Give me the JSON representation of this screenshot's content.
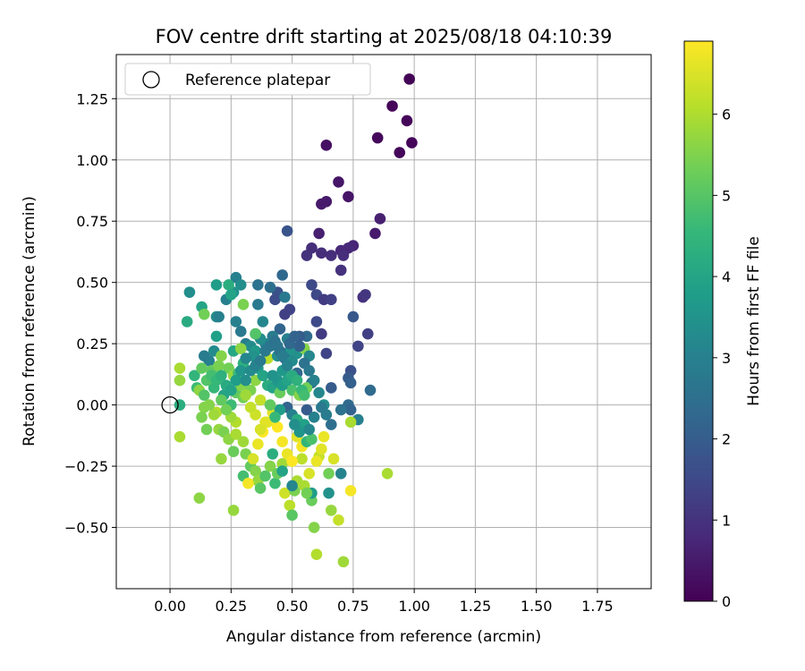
{
  "chart_data": {
    "type": "scatter",
    "title": "FOV centre drift starting at 2025/08/18 04:10:39",
    "xlabel": "Angular distance from reference (arcmin)",
    "ylabel": "Rotation from reference (arcmin)",
    "xlim": [
      -0.22,
      1.97
    ],
    "ylim": [
      -0.75,
      1.43
    ],
    "x_ticks": [
      "0.00",
      "0.25",
      "0.50",
      "0.75",
      "1.00",
      "1.25",
      "1.50",
      "1.75"
    ],
    "x_tick_values": [
      0,
      0.25,
      0.5,
      0.75,
      1.0,
      1.25,
      1.5,
      1.75
    ],
    "y_ticks": [
      "−0.50",
      "−0.25",
      "0.00",
      "0.25",
      "0.50",
      "0.75",
      "1.00",
      "1.25"
    ],
    "y_tick_values": [
      -0.5,
      -0.25,
      0,
      0.25,
      0.5,
      0.75,
      1.0,
      1.25
    ],
    "grid": true,
    "legend": {
      "position": "top-left",
      "entries": [
        "Reference platepar"
      ]
    },
    "reference_point": {
      "x": 0.0,
      "y": 0.0
    },
    "colorbar": {
      "label": "Hours from first FF file",
      "range": [
        0,
        6.9
      ],
      "ticks": [
        "0",
        "1",
        "2",
        "3",
        "4",
        "5",
        "6"
      ],
      "tick_values": [
        0,
        1,
        2,
        3,
        4,
        5,
        6
      ],
      "colormap": "viridis"
    },
    "points": [
      [
        0.98,
        1.33,
        0.05
      ],
      [
        0.91,
        1.22,
        0.1
      ],
      [
        0.97,
        1.16,
        0.1
      ],
      [
        0.85,
        1.09,
        0.15
      ],
      [
        0.99,
        1.07,
        0.1
      ],
      [
        0.94,
        1.03,
        0.12
      ],
      [
        0.64,
        1.06,
        0.3
      ],
      [
        0.69,
        0.91,
        0.4
      ],
      [
        0.73,
        0.85,
        0.4
      ],
      [
        0.62,
        0.82,
        0.5
      ],
      [
        0.64,
        0.83,
        0.5
      ],
      [
        0.86,
        0.76,
        0.6
      ],
      [
        0.84,
        0.7,
        0.5
      ],
      [
        0.61,
        0.7,
        0.6
      ],
      [
        0.48,
        0.71,
        1.8
      ],
      [
        0.75,
        0.65,
        0.7
      ],
      [
        0.73,
        0.64,
        0.8
      ],
      [
        0.7,
        0.63,
        0.8
      ],
      [
        0.58,
        0.64,
        0.9
      ],
      [
        0.62,
        0.62,
        0.9
      ],
      [
        0.66,
        0.61,
        0.9
      ],
      [
        0.71,
        0.61,
        0.9
      ],
      [
        0.56,
        0.61,
        1.0
      ],
      [
        0.7,
        0.55,
        1.0
      ],
      [
        0.46,
        0.53,
        2.3
      ],
      [
        0.58,
        0.49,
        1.5
      ],
      [
        0.44,
        0.46,
        1.7
      ],
      [
        0.43,
        0.43,
        1.6
      ],
      [
        0.6,
        0.45,
        1.5
      ],
      [
        0.63,
        0.43,
        1.2
      ],
      [
        0.66,
        0.43,
        1.3
      ],
      [
        0.79,
        0.44,
        1.0
      ],
      [
        0.8,
        0.45,
        1.1
      ],
      [
        0.49,
        0.39,
        1.4
      ],
      [
        0.47,
        0.37,
        1.3
      ],
      [
        0.6,
        0.34,
        1.5
      ],
      [
        0.75,
        0.36,
        1.9
      ],
      [
        0.81,
        0.29,
        1.3
      ],
      [
        0.77,
        0.24,
        1.4
      ],
      [
        0.64,
        0.21,
        1.4
      ],
      [
        0.62,
        0.29,
        1.2
      ],
      [
        0.74,
        0.14,
        1.7
      ],
      [
        0.66,
        0.07,
        2.0
      ],
      [
        0.82,
        0.06,
        2.4
      ],
      [
        0.73,
        0.11,
        2.0
      ],
      [
        0.74,
        0.09,
        2.1
      ],
      [
        0.73,
        0.0,
        2.4
      ],
      [
        0.74,
        -0.02,
        2.2
      ],
      [
        0.7,
        -0.02,
        2.6
      ],
      [
        0.77,
        -0.06,
        3.0
      ],
      [
        0.74,
        -0.07,
        6.0
      ],
      [
        0.56,
        -0.02,
        2.0
      ],
      [
        0.58,
        0.09,
        2.5
      ],
      [
        0.52,
        0.13,
        2.3
      ],
      [
        0.27,
        0.52,
        3.0
      ],
      [
        0.29,
        0.49,
        3.4
      ],
      [
        0.26,
        0.46,
        3.5
      ],
      [
        0.36,
        0.49,
        2.6
      ],
      [
        0.41,
        0.48,
        2.5
      ],
      [
        0.47,
        0.44,
        2.8
      ],
      [
        0.19,
        0.49,
        3.8
      ],
      [
        0.08,
        0.46,
        3.4
      ],
      [
        0.13,
        0.4,
        4.0
      ],
      [
        0.14,
        0.37,
        5.4
      ],
      [
        0.19,
        0.36,
        3.4
      ],
      [
        0.2,
        0.36,
        3.0
      ],
      [
        0.07,
        0.34,
        4.2
      ],
      [
        0.23,
        0.43,
        3.0
      ],
      [
        0.24,
        0.49,
        4.3
      ],
      [
        0.25,
        0.45,
        4.0
      ],
      [
        0.3,
        0.41,
        5.5
      ],
      [
        0.36,
        0.41,
        2.8
      ],
      [
        0.38,
        0.34,
        3.2
      ],
      [
        0.27,
        0.34,
        3.0
      ],
      [
        0.29,
        0.3,
        2.8
      ],
      [
        0.35,
        0.29,
        2.7
      ],
      [
        0.31,
        0.25,
        2.9
      ],
      [
        0.33,
        0.24,
        3.3
      ],
      [
        0.35,
        0.22,
        3.7
      ],
      [
        0.19,
        0.28,
        3.9
      ],
      [
        0.18,
        0.22,
        3.3
      ],
      [
        0.16,
        0.18,
        3.0
      ],
      [
        0.14,
        0.2,
        2.9
      ],
      [
        0.1,
        0.12,
        4.5
      ],
      [
        0.13,
        0.15,
        5.2
      ],
      [
        0.17,
        0.14,
        5.2
      ],
      [
        0.2,
        0.16,
        5.5
      ],
      [
        0.21,
        0.2,
        5.6
      ],
      [
        0.24,
        0.15,
        5.4
      ],
      [
        0.26,
        0.12,
        5.8
      ],
      [
        0.11,
        0.07,
        4.7
      ],
      [
        0.12,
        0.06,
        5.7
      ],
      [
        0.14,
        0.04,
        5.0
      ],
      [
        0.18,
        0.07,
        4.6
      ],
      [
        0.22,
        0.04,
        4.0
      ],
      [
        0.25,
        0.0,
        4.7
      ],
      [
        0.27,
        0.05,
        5.2
      ],
      [
        0.3,
        0.03,
        5.4
      ],
      [
        0.33,
        0.06,
        5.5
      ],
      [
        0.35,
        0.1,
        5.7
      ],
      [
        0.37,
        0.02,
        6.3
      ],
      [
        0.4,
        0.08,
        4.3
      ],
      [
        0.42,
        0.07,
        4.0
      ],
      [
        0.45,
        0.05,
        5.3
      ],
      [
        0.5,
        0.06,
        4.9
      ],
      [
        0.53,
        0.04,
        5.6
      ],
      [
        0.56,
        0.07,
        5.4
      ],
      [
        0.46,
        0.14,
        3.7
      ],
      [
        0.4,
        0.19,
        6.2
      ],
      [
        0.44,
        0.2,
        3.4
      ],
      [
        0.49,
        0.22,
        3.6
      ],
      [
        0.52,
        0.21,
        3.5
      ],
      [
        0.55,
        0.23,
        5.6
      ],
      [
        0.56,
        0.28,
        2.4
      ],
      [
        0.53,
        0.28,
        2.0
      ],
      [
        0.57,
        0.2,
        3.2
      ],
      [
        0.48,
        0.27,
        3.0
      ],
      [
        0.45,
        0.31,
        2.2
      ],
      [
        0.42,
        0.28,
        2.9
      ],
      [
        0.39,
        0.25,
        3.1
      ],
      [
        0.37,
        0.27,
        3.4
      ],
      [
        0.35,
        0.29,
        5.0
      ],
      [
        0.34,
        0.2,
        3.5
      ],
      [
        0.36,
        0.15,
        3.7
      ],
      [
        0.38,
        0.12,
        4.0
      ],
      [
        0.3,
        0.17,
        4.4
      ],
      [
        0.28,
        0.13,
        4.7
      ],
      [
        0.26,
        0.22,
        4.1
      ],
      [
        0.29,
        0.23,
        5.7
      ],
      [
        0.31,
        0.19,
        3.2
      ],
      [
        0.04,
        0.15,
        6.0
      ],
      [
        0.04,
        0.1,
        5.8
      ],
      [
        0.04,
        0.0,
        4.3
      ],
      [
        0.04,
        -0.13,
        6.0
      ],
      [
        0.14,
        -0.01,
        5.6
      ],
      [
        0.15,
        -0.1,
        5.4
      ],
      [
        0.13,
        -0.05,
        5.5
      ],
      [
        0.19,
        -0.03,
        6.1
      ],
      [
        0.2,
        -0.1,
        5.8
      ],
      [
        0.21,
        -0.22,
        5.8
      ],
      [
        0.22,
        -0.11,
        5.5
      ],
      [
        0.24,
        -0.14,
        5.7
      ],
      [
        0.26,
        -0.19,
        5.3
      ],
      [
        0.27,
        -0.12,
        6.0
      ],
      [
        0.3,
        -0.15,
        5.9
      ],
      [
        0.3,
        -0.29,
        4.8
      ],
      [
        0.31,
        -0.2,
        5.5
      ],
      [
        0.33,
        -0.25,
        5.2
      ],
      [
        0.35,
        -0.27,
        5.6
      ],
      [
        0.36,
        -0.31,
        5.8
      ],
      [
        0.37,
        -0.34,
        5.1
      ],
      [
        0.39,
        -0.29,
        5.0
      ],
      [
        0.41,
        -0.25,
        5.6
      ],
      [
        0.43,
        -0.32,
        4.7
      ],
      [
        0.44,
        -0.28,
        5.3
      ],
      [
        0.46,
        -0.24,
        5.9
      ],
      [
        0.47,
        -0.36,
        6.4
      ],
      [
        0.49,
        -0.41,
        6.2
      ],
      [
        0.5,
        -0.45,
        5.1
      ],
      [
        0.51,
        -0.35,
        5.5
      ],
      [
        0.52,
        -0.31,
        6.0
      ],
      [
        0.54,
        -0.22,
        6.2
      ],
      [
        0.55,
        -0.33,
        6.0
      ],
      [
        0.57,
        -0.28,
        6.5
      ],
      [
        0.58,
        -0.39,
        5.3
      ],
      [
        0.59,
        -0.5,
        5.6
      ],
      [
        0.6,
        -0.61,
        6.1
      ],
      [
        0.61,
        -0.21,
        6.3
      ],
      [
        0.63,
        -0.13,
        6.7
      ],
      [
        0.65,
        -0.28,
        5.4
      ],
      [
        0.66,
        -0.43,
        5.8
      ],
      [
        0.67,
        -0.22,
        6.5
      ],
      [
        0.69,
        -0.47,
        6.3
      ],
      [
        0.71,
        -0.64,
        5.9
      ],
      [
        0.74,
        -0.35,
        6.8
      ],
      [
        0.89,
        -0.28,
        6.0
      ],
      [
        0.26,
        -0.43,
        5.8
      ],
      [
        0.12,
        -0.38,
        5.7
      ],
      [
        0.32,
        -0.32,
        6.8
      ],
      [
        0.34,
        -0.22,
        6.5
      ],
      [
        0.36,
        -0.16,
        6.7
      ],
      [
        0.38,
        -0.11,
        6.9
      ],
      [
        0.4,
        -0.07,
        6.7
      ],
      [
        0.42,
        -0.03,
        6.6
      ],
      [
        0.44,
        -0.09,
        6.9
      ],
      [
        0.46,
        -0.15,
        6.8
      ],
      [
        0.48,
        -0.2,
        6.7
      ],
      [
        0.5,
        -0.23,
        6.9
      ],
      [
        0.52,
        -0.13,
        6.6
      ],
      [
        0.54,
        -0.17,
        6.8
      ],
      [
        0.56,
        -0.15,
        4.5
      ],
      [
        0.58,
        -0.14,
        4.9
      ],
      [
        0.6,
        -0.23,
        6.7
      ],
      [
        0.62,
        -0.18,
        6.6
      ],
      [
        0.64,
        -0.04,
        2.9
      ],
      [
        0.66,
        -0.08,
        2.5
      ],
      [
        0.48,
        -0.01,
        2.2
      ],
      [
        0.5,
        -0.04,
        3.0
      ],
      [
        0.52,
        -0.06,
        4.2
      ],
      [
        0.45,
        -0.02,
        3.8
      ],
      [
        0.43,
        -0.05,
        4.6
      ],
      [
        0.41,
        0.0,
        5.2
      ],
      [
        0.39,
        -0.07,
        6.6
      ],
      [
        0.37,
        -0.1,
        6.5
      ],
      [
        0.35,
        -0.04,
        6.4
      ],
      [
        0.33,
        -0.01,
        6.3
      ],
      [
        0.31,
        0.04,
        5.9
      ],
      [
        0.29,
        0.08,
        5.6
      ],
      [
        0.27,
        -0.07,
        6.1
      ],
      [
        0.25,
        -0.05,
        5.9
      ],
      [
        0.23,
        -0.02,
        5.4
      ],
      [
        0.21,
        0.02,
        5.2
      ],
      [
        0.18,
        -0.04,
        5.9
      ],
      [
        0.16,
        0.0,
        5.6
      ],
      [
        0.15,
        0.1,
        5.0
      ],
      [
        0.17,
        0.12,
        4.8
      ],
      [
        0.19,
        0.1,
        4.6
      ],
      [
        0.21,
        0.12,
        4.4
      ],
      [
        0.23,
        0.08,
        4.2
      ],
      [
        0.25,
        0.06,
        4.0
      ],
      [
        0.27,
        0.1,
        3.8
      ],
      [
        0.29,
        0.14,
        3.6
      ],
      [
        0.31,
        0.1,
        3.4
      ],
      [
        0.33,
        0.14,
        3.3
      ],
      [
        0.35,
        0.16,
        3.1
      ],
      [
        0.37,
        0.18,
        2.9
      ],
      [
        0.39,
        0.22,
        2.8
      ],
      [
        0.41,
        0.24,
        2.7
      ],
      [
        0.43,
        0.26,
        2.6
      ],
      [
        0.45,
        0.22,
        2.5
      ],
      [
        0.47,
        0.19,
        2.4
      ],
      [
        0.49,
        0.25,
        2.3
      ],
      [
        0.51,
        0.28,
        2.2
      ],
      [
        0.53,
        0.24,
        2.1
      ],
      [
        0.55,
        0.17,
        2.6
      ],
      [
        0.57,
        0.14,
        2.8
      ],
      [
        0.59,
        0.1,
        3.0
      ],
      [
        0.61,
        0.05,
        3.2
      ],
      [
        0.63,
        0.0,
        3.4
      ],
      [
        0.42,
        0.12,
        3.5
      ],
      [
        0.44,
        0.1,
        3.6
      ],
      [
        0.46,
        0.08,
        3.8
      ],
      [
        0.48,
        0.1,
        4.0
      ],
      [
        0.5,
        0.12,
        4.2
      ],
      [
        0.52,
        0.1,
        4.4
      ],
      [
        0.54,
        0.06,
        4.6
      ],
      [
        0.5,
        0.18,
        3.3
      ],
      [
        0.48,
        0.16,
        3.1
      ],
      [
        0.46,
        0.2,
        2.9
      ],
      [
        0.44,
        0.24,
        2.7
      ],
      [
        0.55,
        0.04,
        4.8
      ],
      [
        0.55,
        -0.08,
        3.9
      ],
      [
        0.53,
        -0.11,
        3.6
      ],
      [
        0.51,
        -0.08,
        3.4
      ],
      [
        0.57,
        -0.1,
        3.2
      ],
      [
        0.59,
        -0.05,
        3.0
      ],
      [
        0.62,
        -0.01,
        2.8
      ],
      [
        0.7,
        -0.28,
        3.1
      ],
      [
        0.65,
        -0.36,
        3.5
      ],
      [
        0.58,
        -0.36,
        3.8
      ],
      [
        0.56,
        -0.36,
        5.4
      ],
      [
        0.5,
        -0.33,
        3.2
      ],
      [
        0.46,
        -0.27,
        4.0
      ],
      [
        0.42,
        -0.2,
        4.3
      ]
    ]
  }
}
